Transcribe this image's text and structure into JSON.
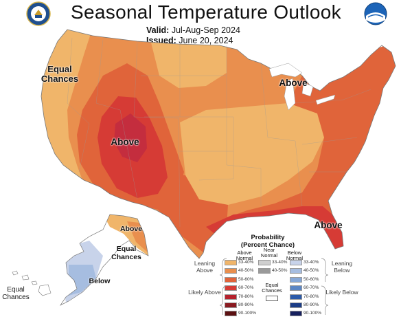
{
  "title": "Seasonal Temperature Outlook",
  "valid": {
    "label": "Valid:",
    "value": "Jul-Aug-Sep 2024"
  },
  "issued": {
    "label": "Issued:",
    "value": "June 20, 2024"
  },
  "map_labels": {
    "equal_chances_west": "Equal Chances",
    "above_rockies": "Above",
    "above_great_lakes": "Above",
    "above_southeast": "Above",
    "above_alaska": "Above",
    "equal_chances_alaska": "Equal Chances",
    "below_alaska": "Below",
    "equal_chances_hawaii": "Equal Chances"
  },
  "legend": {
    "title_line1": "Probability",
    "title_line2": "(Percent Chance)",
    "above_header": "Above Normal",
    "near_header": "Near Normal",
    "below_header": "Below Normal",
    "leaning_above": "Leaning Above",
    "likely_above": "Likely Above",
    "leaning_below": "Leaning Below",
    "likely_below": "Likely Below",
    "equal_chances": "Equal Chances",
    "above": [
      {
        "range": "33-40%",
        "color": "#f0b56a"
      },
      {
        "range": "40-50%",
        "color": "#e98f4e"
      },
      {
        "range": "50-60%",
        "color": "#e0643a"
      },
      {
        "range": "60-70%",
        "color": "#d63b35"
      },
      {
        "range": "70-80%",
        "color": "#b5212d"
      },
      {
        "range": "80-90%",
        "color": "#8a1a20"
      },
      {
        "range": "90-100%",
        "color": "#5b1012"
      }
    ],
    "near": [
      {
        "range": "33-40%",
        "color": "#cfcfcf"
      },
      {
        "range": "40-50%",
        "color": "#9a9a9a"
      }
    ],
    "below": [
      {
        "range": "33-40%",
        "color": "#c8d3ea"
      },
      {
        "range": "40-50%",
        "color": "#a6bde0"
      },
      {
        "range": "50-60%",
        "color": "#86a7d6"
      },
      {
        "range": "60-70%",
        "color": "#5b86c4"
      },
      {
        "range": "70-80%",
        "color": "#2c5aa8"
      },
      {
        "range": "80-90%",
        "color": "#1b3c86"
      },
      {
        "range": "90-100%",
        "color": "#16205e"
      }
    ]
  },
  "colors": {
    "equal_chances": "#ffffff",
    "above_33_40": "#f0b56a",
    "above_40_50": "#e98f4e",
    "above_50_60": "#e0643a",
    "above_60_70": "#d63b35",
    "above_70_80": "#b5212d",
    "below_33_40": "#c8d3ea",
    "below_40_50": "#a6bde0",
    "near_33_40": "#cfcfcf"
  }
}
